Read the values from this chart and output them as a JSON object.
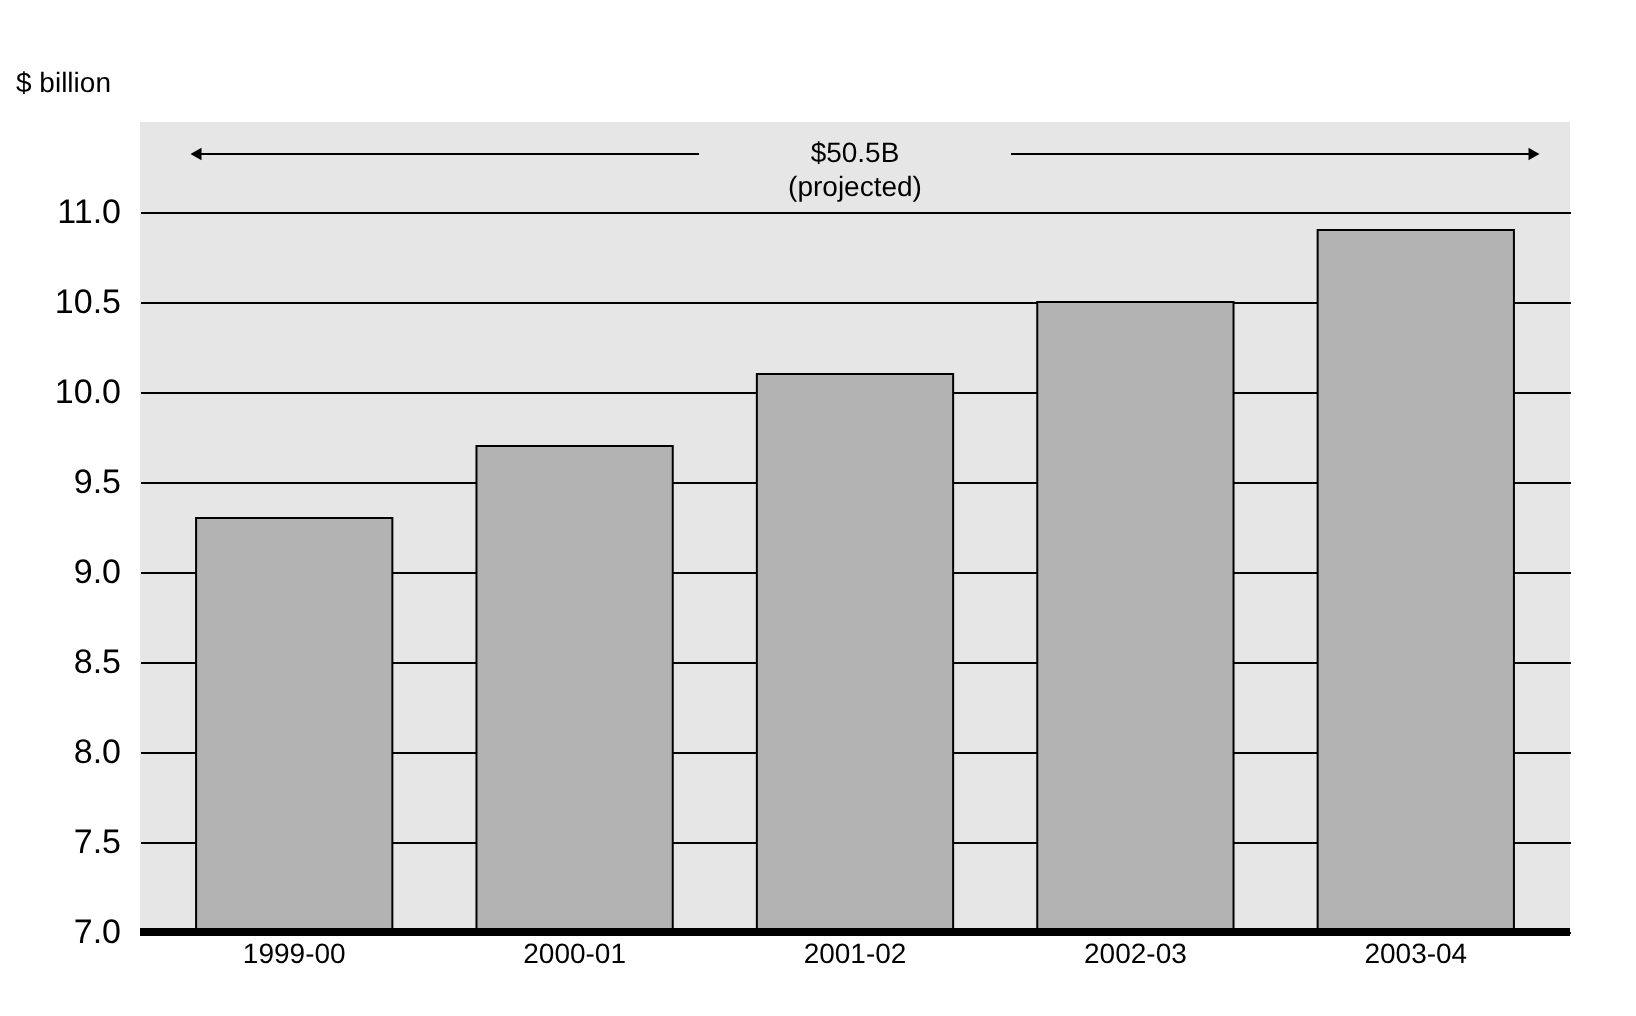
{
  "chart_data": {
    "type": "bar",
    "ylabel": "$ billion",
    "categories": [
      "1999-00",
      "2000-01",
      "2001-02",
      "2002-03",
      "2003-04"
    ],
    "values": [
      9.3,
      9.7,
      10.1,
      10.5,
      10.9
    ],
    "color": "#b3b3b3",
    "ylim": [
      7.0,
      11.5
    ],
    "yticks": [
      {
        "value": 7,
        "label": "7.0"
      },
      7.5,
      {
        "value": 8,
        "label": "8.0"
      },
      8.5,
      {
        "value": 9,
        "label": "9.0"
      },
      9.5,
      {
        "value": 10,
        "label": "10.0"
      },
      10.5,
      {
        "value": 11,
        "label": "11.0"
      }
    ],
    "grid": "y",
    "annotations": [
      "$50.5B\n(projected)"
    ]
  }
}
